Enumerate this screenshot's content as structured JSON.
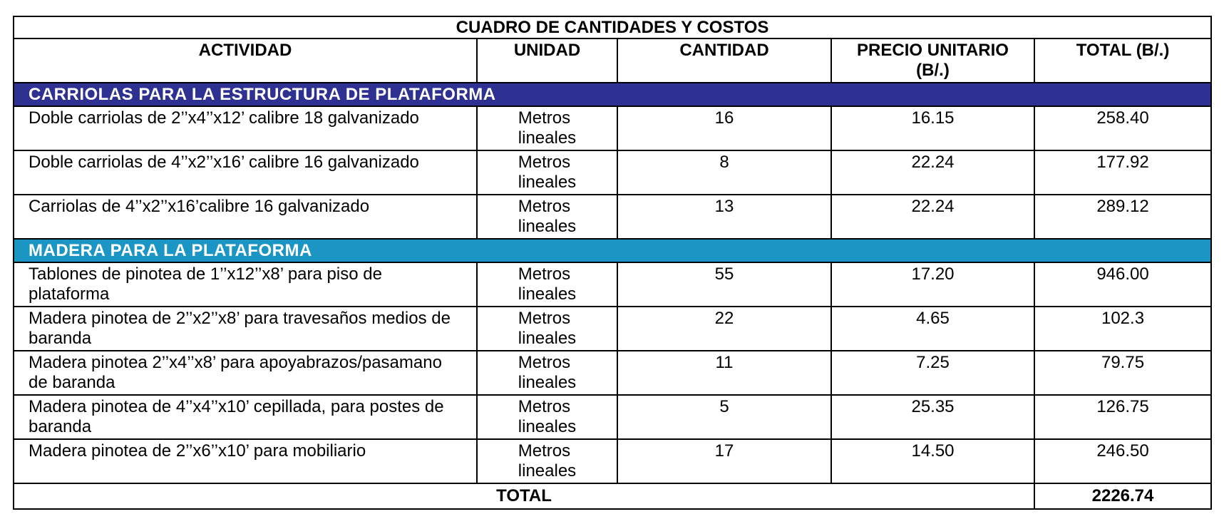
{
  "table": {
    "title": "CUADRO DE CANTIDADES Y COSTOS",
    "columns": [
      "ACTIVIDAD",
      "UNIDAD",
      "CANTIDAD",
      "PRECIO UNITARIO (B/.)",
      "TOTAL (B/.)"
    ],
    "sections": [
      {
        "title": "CARRIOLAS PARA LA ESTRUCTURA DE PLATAFORMA",
        "rows": [
          [
            "Doble carriolas de 2’’x4’’x12’ calibre 18 galvanizado",
            "Metros lineales",
            "16",
            "16.15",
            "258.40"
          ],
          [
            "Doble carriolas de 4’’x2’’x16’ calibre 16 galvanizado",
            "Metros lineales",
            "8",
            "22.24",
            "177.92"
          ],
          [
            "Carriolas de 4’’x2’’x16’calibre 16 galvanizado",
            "Metros lineales",
            "13",
            "22.24",
            "289.12"
          ]
        ]
      },
      {
        "title": "MADERA PARA LA PLATAFORMA",
        "rows": [
          [
            "Tablones de pinotea de 1’’x12’’x8’ para piso de plataforma",
            "Metros lineales",
            "55",
            "17.20",
            "946.00"
          ],
          [
            "Madera pinotea de 2’’x2’’x8’ para travesaños medios de baranda",
            "Metros lineales",
            "22",
            "4.65",
            "102.3"
          ],
          [
            "Madera pinotea 2’’x4’’x8’ para apoyabrazos/pasamano de baranda",
            "Metros lineales",
            "11",
            "7.25",
            "79.75"
          ],
          [
            "Madera pinotea de 4’’x4’’x10’ cepillada, para postes de baranda",
            "Metros lineales",
            "5",
            "25.35",
            "126.75"
          ],
          [
            "Madera pinotea de 2’’x6’’x10’ para mobiliario",
            "Metros lineales",
            "17",
            "14.50",
            "246.50"
          ]
        ]
      }
    ],
    "total": {
      "label": "TOTAL",
      "value": "2226.74"
    }
  }
}
